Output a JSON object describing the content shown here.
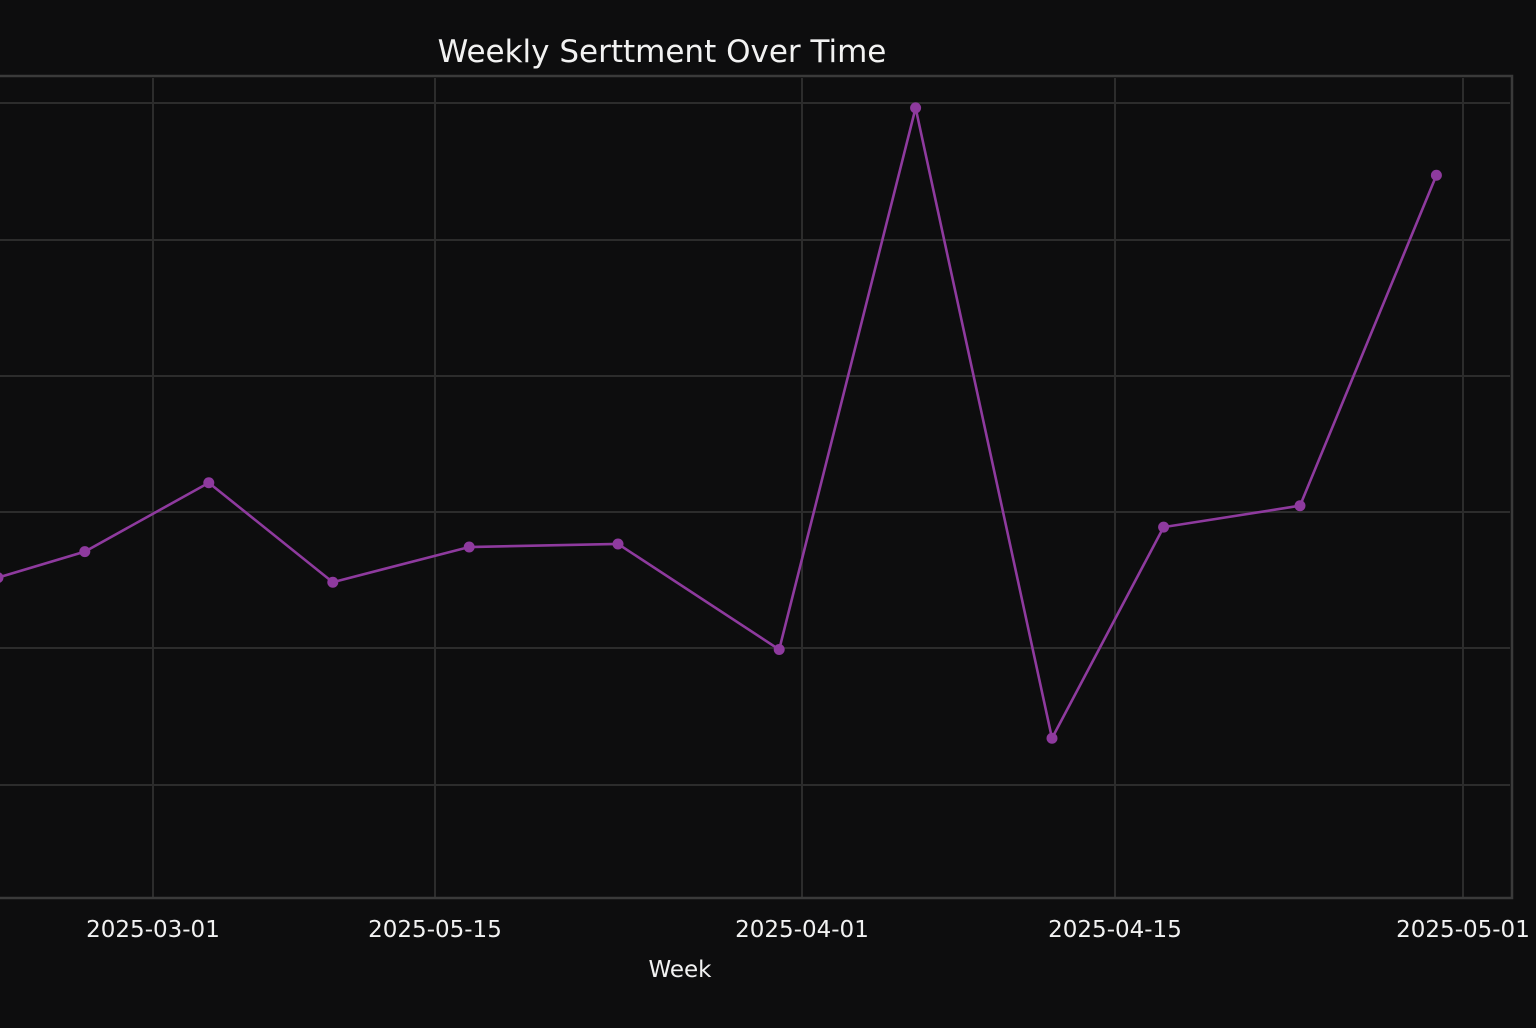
{
  "chart_data": {
    "type": "line",
    "title": "Weekly Serttment Over Time",
    "xlabel": "Week",
    "ylabel": "",
    "x_tick_labels": [
      "2025-03-01",
      "2025-05-15",
      "2025-04-01",
      "2025-04-15",
      "2025-05-01"
    ],
    "series": [
      {
        "name": "",
        "color": "#8e3a9e",
        "points": [
          {
            "x": 0.0,
            "y": 0.46
          },
          {
            "x": 0.7,
            "y": 0.63
          },
          {
            "x": 1.7,
            "y": 1.08
          },
          {
            "x": 2.7,
            "y": 0.43
          },
          {
            "x": 3.8,
            "y": 0.66
          },
          {
            "x": 5.0,
            "y": 0.68
          },
          {
            "x": 6.3,
            "y": -0.01
          },
          {
            "x": 7.4,
            "y": 3.53
          },
          {
            "x": 8.5,
            "y": -0.59
          },
          {
            "x": 9.4,
            "y": 0.79
          },
          {
            "x": 10.5,
            "y": 0.93
          },
          {
            "x": 11.6,
            "y": 3.09
          }
        ]
      }
    ],
    "grid": true,
    "legend": "none",
    "colors": {
      "background": "#0d0d0e",
      "grid": "#2c2c2c",
      "frame": "#3a3a3a",
      "text": "#f2f2f2",
      "line": "#8e3a9e"
    }
  }
}
